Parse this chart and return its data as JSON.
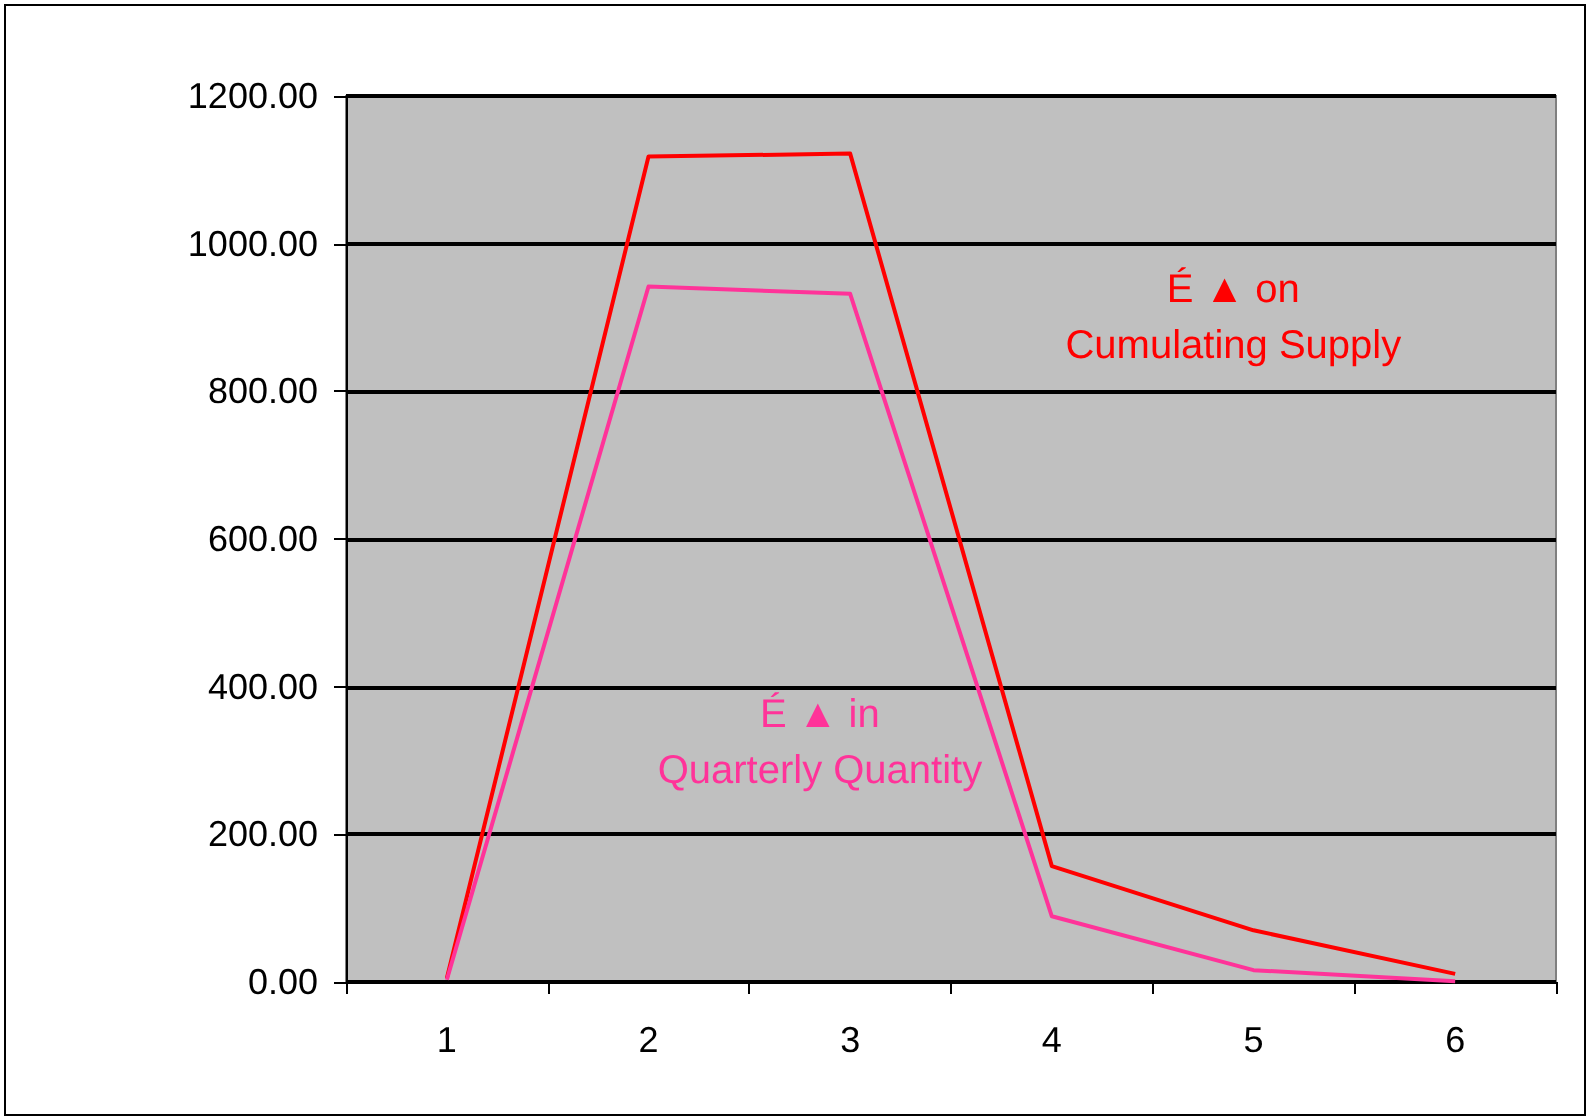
{
  "chart_data": {
    "type": "line",
    "categories": [
      "1",
      "2",
      "3",
      "4",
      "5",
      "6"
    ],
    "series": [
      {
        "name": "É ▲ on\nCumulating Supply",
        "color": "#ff0000",
        "values": [
          5,
          1118,
          1122,
          157,
          70,
          11
        ]
      },
      {
        "name": "É ▲ in\nQuarterly Quantity",
        "color": "#ff3399",
        "values": [
          3,
          942,
          932,
          89,
          16,
          1
        ]
      }
    ],
    "ylim": [
      0,
      1200
    ],
    "yticks": [
      {
        "value": 0,
        "label": "0.00"
      },
      {
        "value": 200,
        "label": "200.00"
      },
      {
        "value": 400,
        "label": "400.00"
      },
      {
        "value": 600,
        "label": "600.00"
      },
      {
        "value": 800,
        "label": "800.00"
      },
      {
        "value": 1000,
        "label": "1000.00"
      },
      {
        "value": 1200,
        "label": "1200.00"
      }
    ],
    "grid": "y",
    "legend": false,
    "marker": "none",
    "line_style": "solid"
  }
}
